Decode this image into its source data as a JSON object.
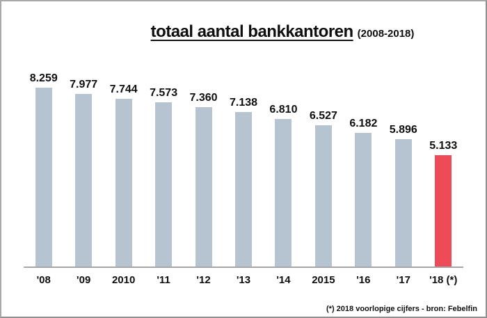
{
  "title": {
    "main": "totaal aantal bankkantoren",
    "period": "(2008-2018)"
  },
  "footer": "(*) 2018 voorlopige cijfers - bron: Febelfin",
  "chart_data": {
    "type": "bar",
    "title": "totaal aantal bankkantoren (2008-2018)",
    "categories": [
      "'08",
      "'09",
      "2010",
      "'11",
      "'12",
      "'13",
      "'14",
      "2015",
      "'16",
      "'17",
      "'18 (*)"
    ],
    "values": [
      8259,
      7977,
      7744,
      7573,
      7360,
      7138,
      6810,
      6527,
      6182,
      5896,
      5133
    ],
    "value_labels": [
      "8.259",
      "7.977",
      "7.744",
      "7.573",
      "7.360",
      "7.138",
      "6.810",
      "6.527",
      "6.182",
      "5.896",
      "5.133"
    ],
    "bar_colors": {
      "default": "#b6c3d1",
      "highlight": "#ed4b57"
    },
    "highlight_index": 10,
    "highlight_note": "2018 voorlopige cijfers",
    "source": "bron: Febelfin",
    "xlabel": "",
    "ylabel": "",
    "ylim": [
      0,
      8259
    ],
    "grid": false,
    "legend": false,
    "axis_line_color": "#a6a6a6"
  }
}
